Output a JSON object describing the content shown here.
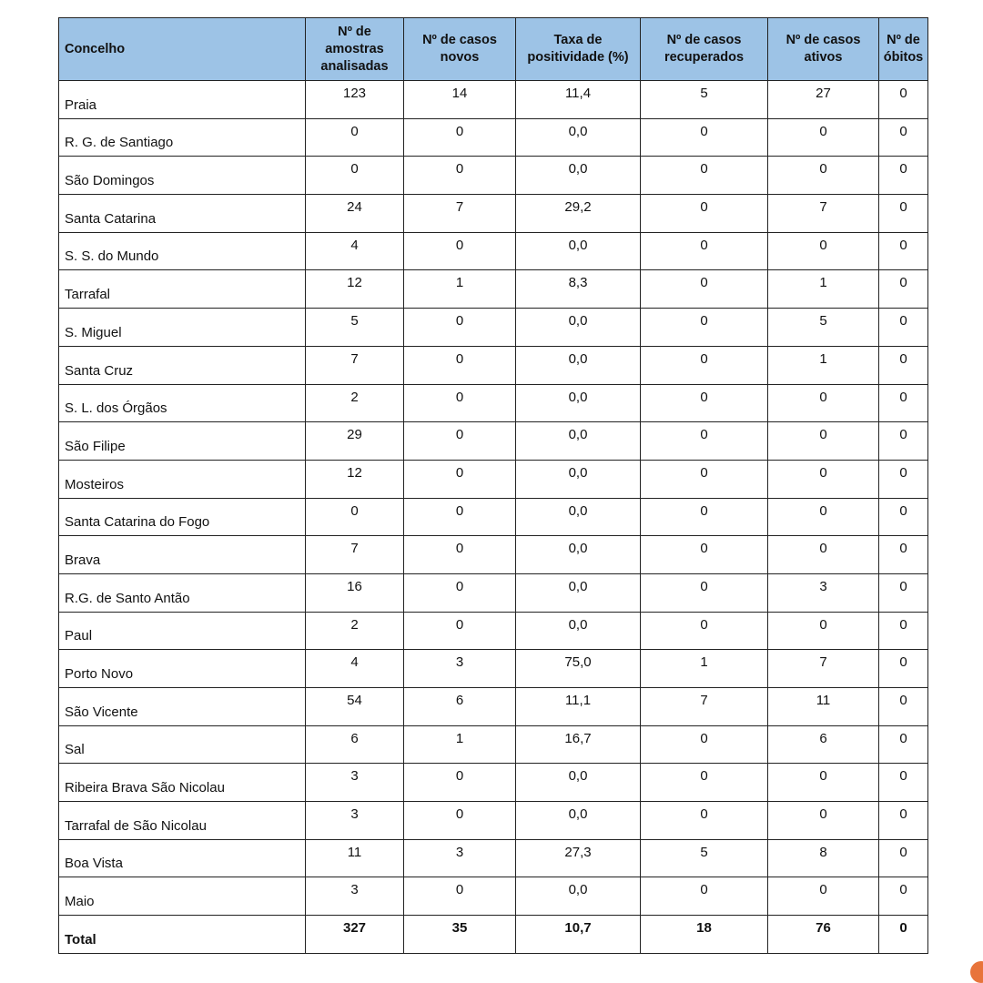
{
  "table": {
    "headers": [
      "Concelho",
      "Nº de amostras analisadas",
      "Nº de casos novos",
      "Taxa de positividade (%)",
      "Nº de casos recuperados",
      "Nº de casos ativos",
      "Nº de óbitos"
    ],
    "header_lines": [
      [
        "Concelho"
      ],
      [
        "Nº de",
        "amostras",
        "analisadas"
      ],
      [
        "Nº de casos",
        "novos"
      ],
      [
        "Taxa de",
        "positividade (%)"
      ],
      [
        "Nº de casos",
        "recuperados"
      ],
      [
        "Nº de casos",
        "ativos"
      ],
      [
        "Nº de",
        "óbitos"
      ]
    ],
    "header_color": "#9dc3e6",
    "rows": [
      [
        "Praia",
        "123",
        "14",
        "11,4",
        "5",
        "27",
        "0"
      ],
      [
        "R. G. de Santiago",
        "0",
        "0",
        "0,0",
        "0",
        "0",
        "0"
      ],
      [
        "São Domingos",
        "0",
        "0",
        "0,0",
        "0",
        "0",
        "0"
      ],
      [
        "Santa Catarina",
        "24",
        "7",
        "29,2",
        "0",
        "7",
        "0"
      ],
      [
        "S. S. do Mundo",
        "4",
        "0",
        "0,0",
        "0",
        "0",
        "0"
      ],
      [
        "Tarrafal",
        "12",
        "1",
        "8,3",
        "0",
        "1",
        "0"
      ],
      [
        "S. Miguel",
        "5",
        "0",
        "0,0",
        "0",
        "5",
        "0"
      ],
      [
        "Santa Cruz",
        "7",
        "0",
        "0,0",
        "0",
        "1",
        "0"
      ],
      [
        "S. L. dos Órgãos",
        "2",
        "0",
        "0,0",
        "0",
        "0",
        "0"
      ],
      [
        "São Filipe",
        "29",
        "0",
        "0,0",
        "0",
        "0",
        "0"
      ],
      [
        "Mosteiros",
        "12",
        "0",
        "0,0",
        "0",
        "0",
        "0"
      ],
      [
        "Santa Catarina do Fogo",
        "0",
        "0",
        "0,0",
        "0",
        "0",
        "0"
      ],
      [
        "Brava",
        "7",
        "0",
        "0,0",
        "0",
        "0",
        "0"
      ],
      [
        "R.G. de Santo Antão",
        "16",
        "0",
        "0,0",
        "0",
        "3",
        "0"
      ],
      [
        "Paul",
        "2",
        "0",
        "0,0",
        "0",
        "0",
        "0"
      ],
      [
        "Porto Novo",
        "4",
        "3",
        "75,0",
        "1",
        "7",
        "0"
      ],
      [
        "São Vicente",
        "54",
        "6",
        "11,1",
        "7",
        "11",
        "0"
      ],
      [
        "Sal",
        "6",
        "1",
        "16,7",
        "0",
        "6",
        "0"
      ],
      [
        "Ribeira Brava São Nicolau",
        "3",
        "0",
        "0,0",
        "0",
        "0",
        "0"
      ],
      [
        "Tarrafal de São Nicolau",
        "3",
        "0",
        "0,0",
        "0",
        "0",
        "0"
      ],
      [
        "Boa Vista",
        "11",
        "3",
        "27,3",
        "5",
        "8",
        "0"
      ],
      [
        "Maio",
        "3",
        "0",
        "0,0",
        "0",
        "0",
        "0"
      ]
    ],
    "total": [
      "Total",
      "327",
      "35",
      "10,7",
      "18",
      "76",
      "0"
    ]
  }
}
